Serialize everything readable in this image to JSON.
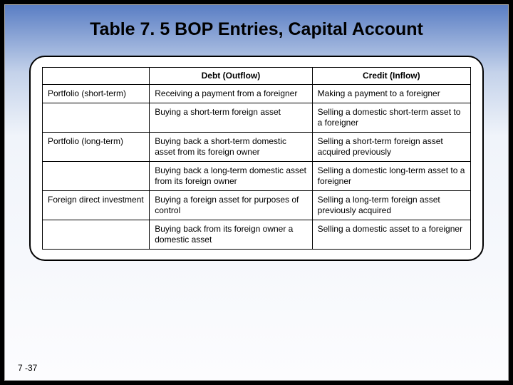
{
  "slide": {
    "title": "Table 7. 5 BOP Entries, Capital Account",
    "footer": "7 -37"
  },
  "table": {
    "header": {
      "col0": "",
      "col1": "Debt (Outflow)",
      "col2": "Credit (Inflow)"
    },
    "rows": [
      {
        "category": "Portfolio (short-term)",
        "debt": "Receiving a payment from a foreigner",
        "credit": "Making a payment to a foreigner"
      },
      {
        "category": "",
        "debt": "Buying a short-term foreign asset",
        "credit": "Selling a domestic short-term asset to a foreigner"
      },
      {
        "category": "Portfolio (long-term)",
        "debt": "Buying back a short-term domestic asset from its foreign owner",
        "credit": "Selling a short-term foreign asset acquired previously"
      },
      {
        "category": "",
        "debt": "Buying back a long-term domestic asset from its foreign owner",
        "credit": "Selling a domestic long-term asset to a foreigner"
      },
      {
        "category": "Foreign direct investment",
        "debt": "Buying a foreign asset for purposes of control",
        "credit": "Selling a long-term foreign asset previously acquired"
      },
      {
        "category": "",
        "debt": "Buying back from its foreign owner a domestic asset",
        "credit": "Selling a domestic asset to a foreigner"
      }
    ]
  }
}
